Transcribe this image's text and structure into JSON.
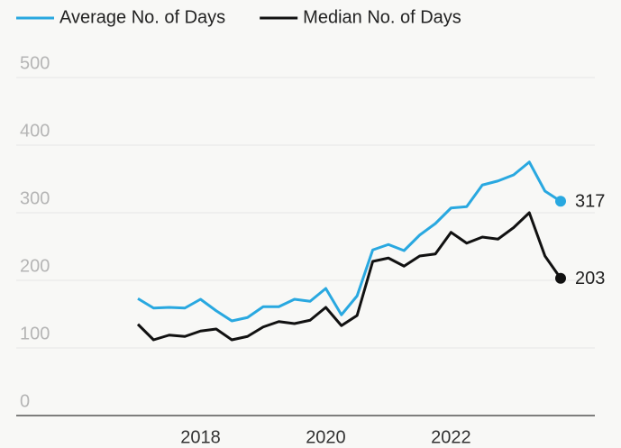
{
  "chart_data": {
    "type": "line",
    "x": [
      2017,
      2017.25,
      2017.5,
      2017.75,
      2018,
      2018.25,
      2018.5,
      2018.75,
      2019,
      2019.25,
      2019.5,
      2019.75,
      2020,
      2020.25,
      2020.5,
      2020.75,
      2021,
      2021.25,
      2021.5,
      2021.75,
      2022,
      2022.25,
      2022.5,
      2022.75,
      2023,
      2023.25,
      2023.5,
      2023.75
    ],
    "series": [
      {
        "name": "Average No. of Days",
        "color": "#29a8e0",
        "values": [
          173,
          159,
          160,
          159,
          172,
          155,
          140,
          145,
          161,
          161,
          172,
          169,
          188,
          149,
          177,
          245,
          253,
          244,
          267,
          284,
          307,
          309,
          341,
          347,
          356,
          375,
          332,
          317
        ]
      },
      {
        "name": "Median No. of Days",
        "color": "#111111",
        "values": [
          135,
          112,
          119,
          117,
          125,
          128,
          112,
          117,
          131,
          139,
          136,
          141,
          160,
          133,
          148,
          228,
          233,
          221,
          236,
          239,
          271,
          255,
          264,
          261,
          278,
          300,
          236,
          203
        ]
      }
    ],
    "xlim": [
      2017,
      2023.75
    ],
    "xticks": [
      2018,
      2020,
      2022
    ],
    "ylim": [
      0,
      500
    ],
    "yticks": [
      0,
      100,
      200,
      300,
      400,
      500
    ],
    "grid": true,
    "legend": "top"
  }
}
